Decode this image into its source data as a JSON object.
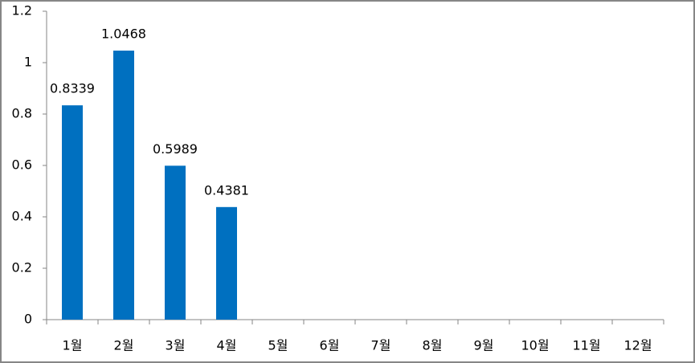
{
  "chart_data": {
    "type": "bar",
    "categories": [
      "1월",
      "2월",
      "3월",
      "4월",
      "5월",
      "6월",
      "7월",
      "8월",
      "9월",
      "10월",
      "11월",
      "12월"
    ],
    "values": [
      0.8339,
      1.0468,
      0.5989,
      0.4381,
      null,
      null,
      null,
      null,
      null,
      null,
      null,
      null
    ],
    "color": "#0070c0",
    "ylim": [
      0,
      1.2
    ],
    "yticks": [
      0,
      0.2,
      0.4,
      0.6,
      0.8,
      1,
      1.2
    ],
    "grid": false
  }
}
